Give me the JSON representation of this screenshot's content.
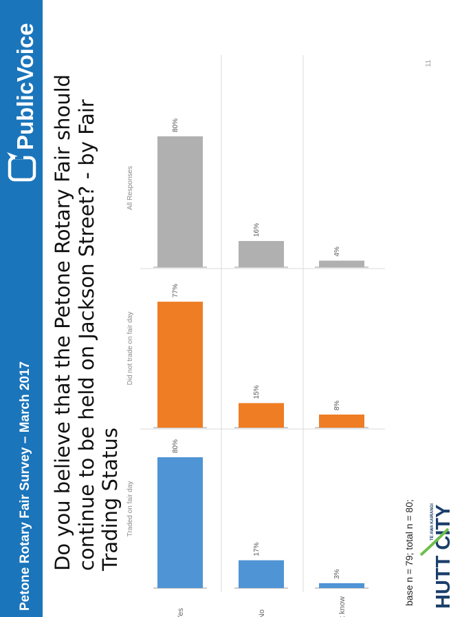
{
  "header": {
    "survey_title": "Petone Rotary Fair Survey – March 2017",
    "brand_name": "PublicVoice",
    "bg_color": "#1b75bb"
  },
  "question": {
    "lines": [
      "Do you believe that the Petone Rotary Fair should",
      "continue to be held on Jackson Street? - by Fair",
      "Trading Status"
    ]
  },
  "page_number": "11",
  "footnote": "base n = 79; total n = 80;",
  "footer_logo": {
    "name": "HUTT CITY",
    "tagline": "TE AWA KAIRANGI",
    "color": "#1b3f6b",
    "accent": "#6cbf4a"
  },
  "chart_data": {
    "type": "bar",
    "categories": [
      "Yes",
      "No",
      "Dont know"
    ],
    "series": [
      {
        "name": "Traded on fair day",
        "values": [
          80,
          17,
          3
        ],
        "labels": [
          "80%",
          "17%",
          "3%"
        ],
        "color": "#4f94d4"
      },
      {
        "name": "Did not trade on fair day",
        "values": [
          77,
          15,
          8
        ],
        "labels": [
          "77%",
          "15%",
          "8%"
        ],
        "color": "#ee7d23"
      },
      {
        "name": "All Responses",
        "values": [
          80,
          16,
          4
        ],
        "labels": [
          "80%",
          "16%",
          "4%"
        ],
        "color": "#b0b0b0"
      }
    ],
    "ylim": [
      0,
      100
    ],
    "unit": "%",
    "grid": false
  }
}
